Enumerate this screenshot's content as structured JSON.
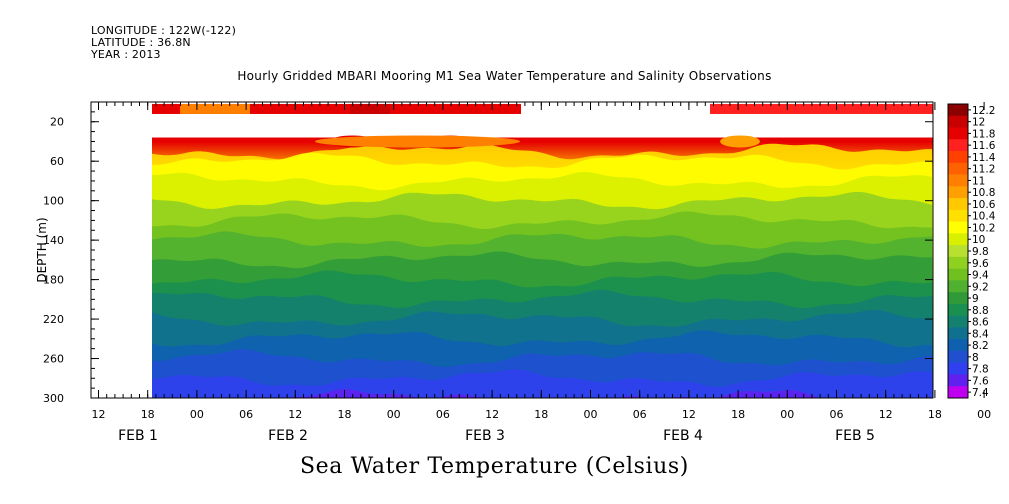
{
  "header": {
    "longitude": "LONGITUDE : 122W(-122)",
    "latitude": "LATITUDE : 36.8N",
    "year": "YEAR : 2013"
  },
  "chart_data": {
    "type": "heatmap",
    "title": "Hourly Gridded MBARI Mooring M1 Sea Water Temperature and Salinity Observations",
    "xlabel": "Sea Water Temperature (Celsius)",
    "ylabel": "DEPTH (m)",
    "ylim": [
      300,
      0
    ],
    "y_ticks": [
      20,
      60,
      100,
      140,
      180,
      220,
      260,
      300
    ],
    "x_hour_ticks": [
      "12",
      "18",
      "00",
      "06",
      "12",
      "18",
      "00",
      "06",
      "12",
      "18",
      "00",
      "06",
      "12",
      "18",
      "00",
      "06",
      "12",
      "18",
      "00",
      "06",
      "12"
    ],
    "x_day_labels": [
      "FEB  1",
      "FEB  2",
      "FEB  3",
      "FEB  4",
      "FEB  5"
    ],
    "colorbar_levels": [
      12.2,
      12,
      11.8,
      11.6,
      11.4,
      11.2,
      11,
      10.8,
      10.6,
      10.4,
      10.2,
      10,
      9.8,
      9.6,
      9.4,
      9.2,
      9,
      8.8,
      8.6,
      8.4,
      8.2,
      8,
      7.8,
      7.6,
      7.4
    ],
    "colorbar_colors": [
      "#8b0000",
      "#c80000",
      "#e60000",
      "#ff2020",
      "#ff4000",
      "#ff6000",
      "#ff8000",
      "#ffa000",
      "#ffc800",
      "#ffe000",
      "#ffff00",
      "#d8f000",
      "#b8e030",
      "#90d020",
      "#70c020",
      "#50b030",
      "#309a38",
      "#1a9050",
      "#148070",
      "#107090",
      "#1060b0",
      "#2050d0",
      "#3040f0",
      "#6020f0",
      "#c000f0"
    ],
    "depth_profile": [
      {
        "depth": 5,
        "temp": 11.9
      },
      {
        "depth": 40,
        "temp": 10.7
      },
      {
        "depth": 50,
        "temp": 10.4
      },
      {
        "depth": 60,
        "temp": 10.2
      },
      {
        "depth": 80,
        "temp": 10.0
      },
      {
        "depth": 100,
        "temp": 9.7
      },
      {
        "depth": 120,
        "temp": 9.5
      },
      {
        "depth": 140,
        "temp": 9.3
      },
      {
        "depth": 160,
        "temp": 9.1
      },
      {
        "depth": 180,
        "temp": 8.9
      },
      {
        "depth": 200,
        "temp": 8.7
      },
      {
        "depth": 220,
        "temp": 8.5
      },
      {
        "depth": 240,
        "temp": 8.3
      },
      {
        "depth": 260,
        "temp": 8.1
      },
      {
        "depth": 280,
        "temp": 7.8
      },
      {
        "depth": 300,
        "temp": 7.6
      }
    ]
  }
}
